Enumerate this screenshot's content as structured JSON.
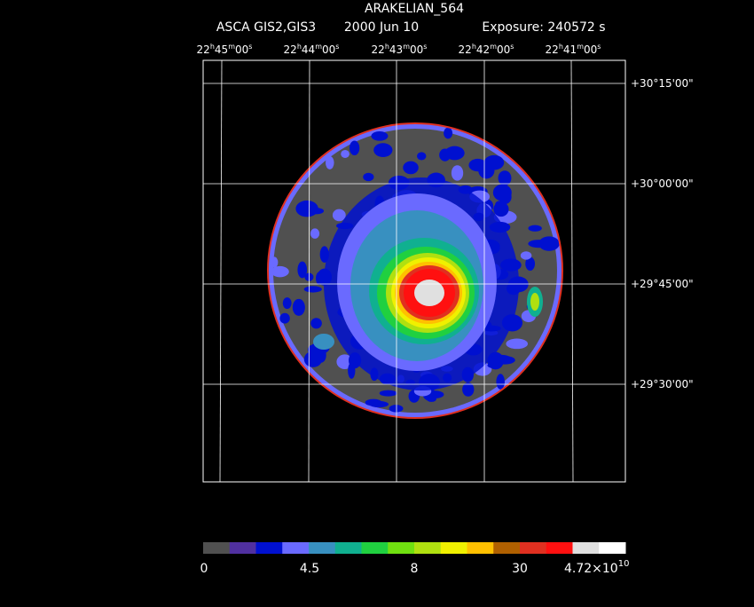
{
  "header": {
    "title": "ARAKELIAN_564",
    "subtitle_instrument": "ASCA GIS2,GIS3",
    "subtitle_date": "2000 Jun 10",
    "subtitle_exposure": "Exposure: 240572 s"
  },
  "ra_labels": [
    [
      "22",
      "h",
      "45",
      "m",
      "00",
      "s"
    ],
    [
      "22",
      "h",
      "44",
      "m",
      "00",
      "s"
    ],
    [
      "22",
      "h",
      "43",
      "m",
      "00",
      "s"
    ],
    [
      "22",
      "h",
      "42",
      "m",
      "00",
      "s"
    ],
    [
      "22",
      "h",
      "41",
      "m",
      "00",
      "s"
    ]
  ],
  "dec_labels": [
    "+30°15'00\"",
    "+30°00'00\"",
    "+29°45'00\"",
    "+29°30'00\""
  ],
  "colorbar": {
    "colors": [
      "#505050",
      "#5030a0",
      "#0010d0",
      "#6a6aff",
      "#3890c0",
      "#10b090",
      "#20d040",
      "#70e010",
      "#b0e010",
      "#f0f000",
      "#ffc000",
      "#b06000",
      "#e03020",
      "#ff1010",
      "#e0e0e0",
      "#ffffff"
    ],
    "labels": [
      "0",
      "4.5",
      "8",
      "30"
    ],
    "max_label": {
      "mantissa": "4.72×10",
      "exponent": "10"
    }
  }
}
